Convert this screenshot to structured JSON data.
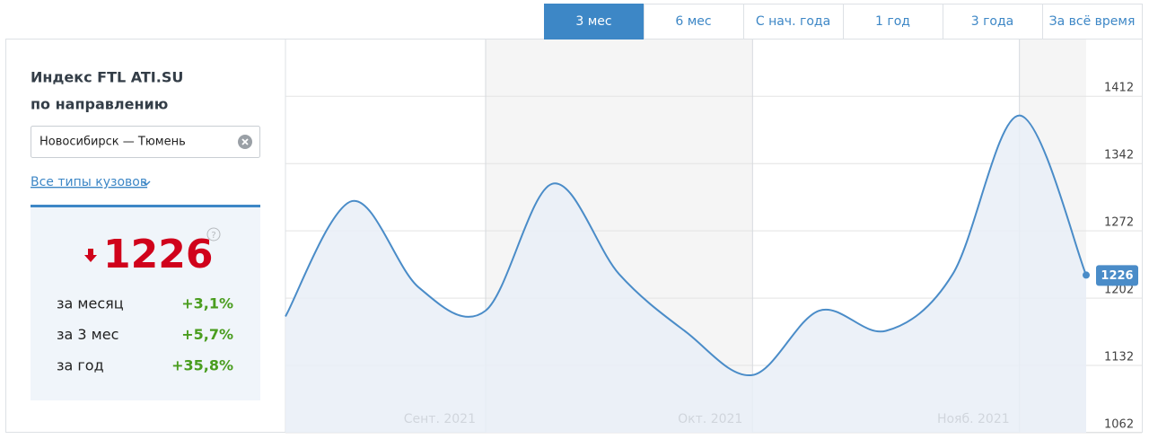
{
  "tabs": [
    {
      "label": "3 мес",
      "active": true
    },
    {
      "label": "6 мес",
      "active": false
    },
    {
      "label": "С нач. года",
      "active": false
    },
    {
      "label": "1 год",
      "active": false
    },
    {
      "label": "3 года",
      "active": false
    },
    {
      "label": "За всё время",
      "active": false
    }
  ],
  "panel": {
    "title": "Индекс FTL ATI.SU",
    "subtitle": "по направлению",
    "route": "Новосибирск — Тюмень",
    "body_types": "Все типы кузовов",
    "current": "1226",
    "help": "?",
    "stats": [
      {
        "label": "за месяц",
        "value": "+3,1%"
      },
      {
        "label": "за 3 мес",
        "value": "+5,7%"
      },
      {
        "label": "за год",
        "value": "+35,8%"
      }
    ]
  },
  "chart_data": {
    "type": "line",
    "x": [
      0,
      1,
      2,
      3,
      4,
      5,
      6,
      7,
      8,
      9,
      10,
      11,
      12
    ],
    "values": [
      1183,
      1303,
      1213,
      1189,
      1321,
      1227,
      1167,
      1122,
      1189,
      1168,
      1227,
      1392,
      1226
    ],
    "color": "#4a8cc8",
    "area_color": "#e9eff7",
    "xlim": [
      0,
      12
    ],
    "xticks": [
      {
        "value": 3,
        "label": "Сент. 2021"
      },
      {
        "value": 7,
        "label": "Окт. 2021"
      },
      {
        "value": 11,
        "label": "Нояб. 2021"
      }
    ],
    "ylim": [
      1062,
      1472
    ],
    "yticks": [
      1062,
      1132,
      1202,
      1272,
      1342,
      1412
    ],
    "grid": true
  }
}
